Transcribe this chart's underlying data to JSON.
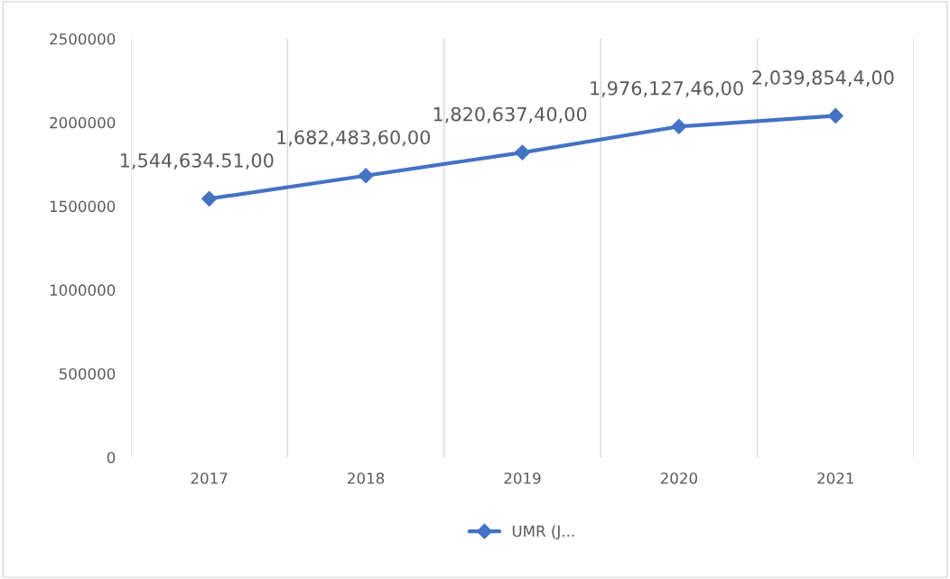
{
  "chart_data": {
    "type": "line",
    "categories": [
      "2017",
      "2018",
      "2019",
      "2020",
      "2021"
    ],
    "series": [
      {
        "name": "UMR (J...",
        "color": "#4472c4",
        "values": [
          1544634.51,
          1682483.6,
          1820637.4,
          1976127.46,
          2039854.4
        ],
        "value_labels": [
          "1,544,634.51,00",
          "1,682,483,60,00",
          "1,820,637,40,00",
          "1,976,127,46,00",
          "2,039,854,4,00"
        ]
      }
    ],
    "ylim": [
      0,
      2500000
    ],
    "yticks": [
      0,
      500000,
      1000000,
      1500000,
      2000000,
      2500000
    ],
    "grid": "x",
    "legend": "bottom",
    "marker": "diamond",
    "line_style": "solid"
  }
}
